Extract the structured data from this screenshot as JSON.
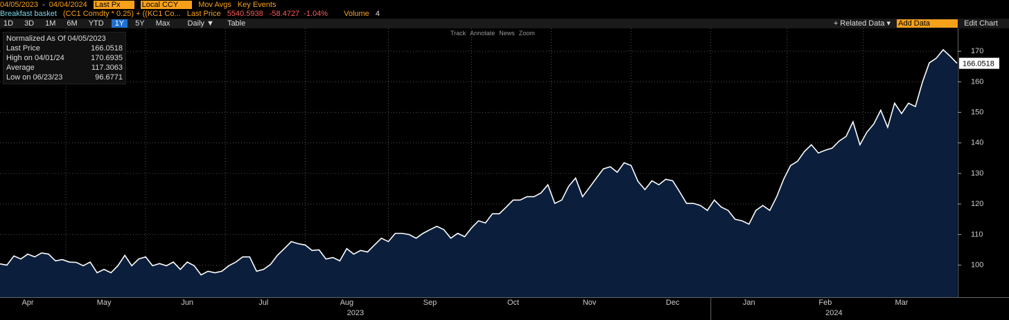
{
  "toolbar": {
    "start_date": "04/05/2023",
    "dash": "-",
    "end_date": "04/04/2024",
    "field": "Last Px",
    "currency": "Local CCY",
    "mov_avgs": "Mov Avgs",
    "key_events": "Key Events"
  },
  "security": {
    "name": "Breakfast basket",
    "formula": "(CC1 Comdty * 0.25) + ((KC1 Co...",
    "last_label": "Last Price",
    "last": "5540.5938",
    "change": "-58.4727",
    "change_pct": "-1.04%",
    "volume_label": "Volume",
    "volume": "4"
  },
  "periods": [
    "1D",
    "3D",
    "1M",
    "6M",
    "YTD",
    "1Y",
    "5Y",
    "Max"
  ],
  "frequency": "Daily ▼",
  "table": "Table",
  "right_tools": {
    "related": "+ Related Data ▾",
    "add": "Add Data",
    "edit": "Edit Chart"
  },
  "chart_tools": [
    "Track",
    "Annotate",
    "News",
    "Zoom"
  ],
  "info_box": {
    "title": "Normalized As Of 04/05/2023",
    "rows": [
      [
        "Last Price",
        "166.0518"
      ],
      [
        "High on 04/01/24",
        "170.6935"
      ],
      [
        "Average",
        "117.3063"
      ],
      [
        "Low on 06/23/23",
        "96.6771"
      ]
    ]
  },
  "chart_data": {
    "type": "area",
    "color": "#ffffff",
    "fill": "#0b1f3d",
    "categories": [
      null,
      null,
      null,
      null,
      "Apr",
      null,
      null,
      null,
      null,
      null,
      null,
      null,
      null,
      null,
      null,
      "May",
      null,
      null,
      null,
      null,
      null,
      null,
      null,
      null,
      null,
      null,
      null,
      "Jun",
      null,
      null,
      null,
      null,
      null,
      null,
      null,
      null,
      null,
      null,
      "Jul",
      null,
      null,
      null,
      null,
      null,
      null,
      null,
      null,
      null,
      null,
      null,
      "Aug",
      null,
      null,
      null,
      null,
      null,
      null,
      null,
      null,
      null,
      null,
      null,
      "Sep",
      null,
      null,
      null,
      null,
      null,
      null,
      null,
      null,
      null,
      null,
      null,
      "Oct",
      null,
      null,
      null,
      null,
      null,
      null,
      null,
      null,
      null,
      null,
      "Nov",
      null,
      null,
      null,
      null,
      null,
      null,
      null,
      null,
      null,
      null,
      null,
      "Dec",
      null,
      null,
      null,
      null,
      null,
      null,
      null,
      null,
      null,
      null,
      "Jan",
      null,
      null,
      null,
      null,
      null,
      null,
      null,
      null,
      null,
      null,
      "Feb",
      null,
      null,
      null,
      null,
      null,
      null,
      null,
      null,
      null,
      null,
      "Mar",
      null,
      null,
      null,
      null,
      null,
      null,
      null,
      null
    ],
    "values": [
      100.4,
      100,
      103,
      102,
      103.6,
      102.7,
      104,
      103.6,
      101.4,
      101.8,
      101,
      100.9,
      99.8,
      101,
      97.5,
      98.6,
      97.5,
      99.8,
      103.2,
      99.8,
      102,
      102.7,
      99.8,
      100.5,
      99.8,
      101,
      98.6,
      101,
      99.8,
      96.8,
      98,
      97.5,
      98,
      99.8,
      101,
      102.7,
      102.7,
      98,
      98.6,
      100.2,
      103.2,
      105.4,
      107.7,
      107,
      106.6,
      104.8,
      105,
      102,
      102.5,
      101.4,
      105.4,
      103.6,
      104.8,
      104.3,
      106.6,
      108.8,
      107.7,
      110.4,
      110.4,
      110,
      108.8,
      110.4,
      111.6,
      112.7,
      111.6,
      108.8,
      110.4,
      109.3,
      112.2,
      114.5,
      113.8,
      116.8,
      116.8,
      119,
      121.3,
      121.3,
      122.4,
      122.4,
      123.6,
      126.3,
      120.2,
      121.3,
      125.8,
      128.5,
      122.4,
      125.4,
      128.5,
      131.5,
      132.2,
      130.4,
      133.5,
      132.6,
      127.4,
      124.7,
      127.6,
      126.3,
      128.1,
      127.6,
      124,
      120.2,
      120.2,
      119.5,
      117.9,
      121.3,
      119,
      117.9,
      115,
      114.5,
      113.4,
      117.9,
      119.5,
      117.9,
      122.4,
      128.1,
      132.6,
      134,
      137.2,
      139.4,
      136.7,
      137.6,
      138.3,
      140.6,
      142.1,
      146.9,
      139.4,
      143.5,
      146.2,
      150.7,
      145.1,
      153,
      149.6,
      153,
      151.9,
      159.8,
      166.2,
      167.7,
      170.5,
      168.4,
      166.0518
    ],
    "last_value_label": "166.0518",
    "years": [
      "2023",
      "2024"
    ],
    "ylim": [
      89.5,
      177.5
    ],
    "yticks": [
      100,
      110,
      120,
      130,
      140,
      150,
      160,
      170
    ],
    "grid": true
  }
}
